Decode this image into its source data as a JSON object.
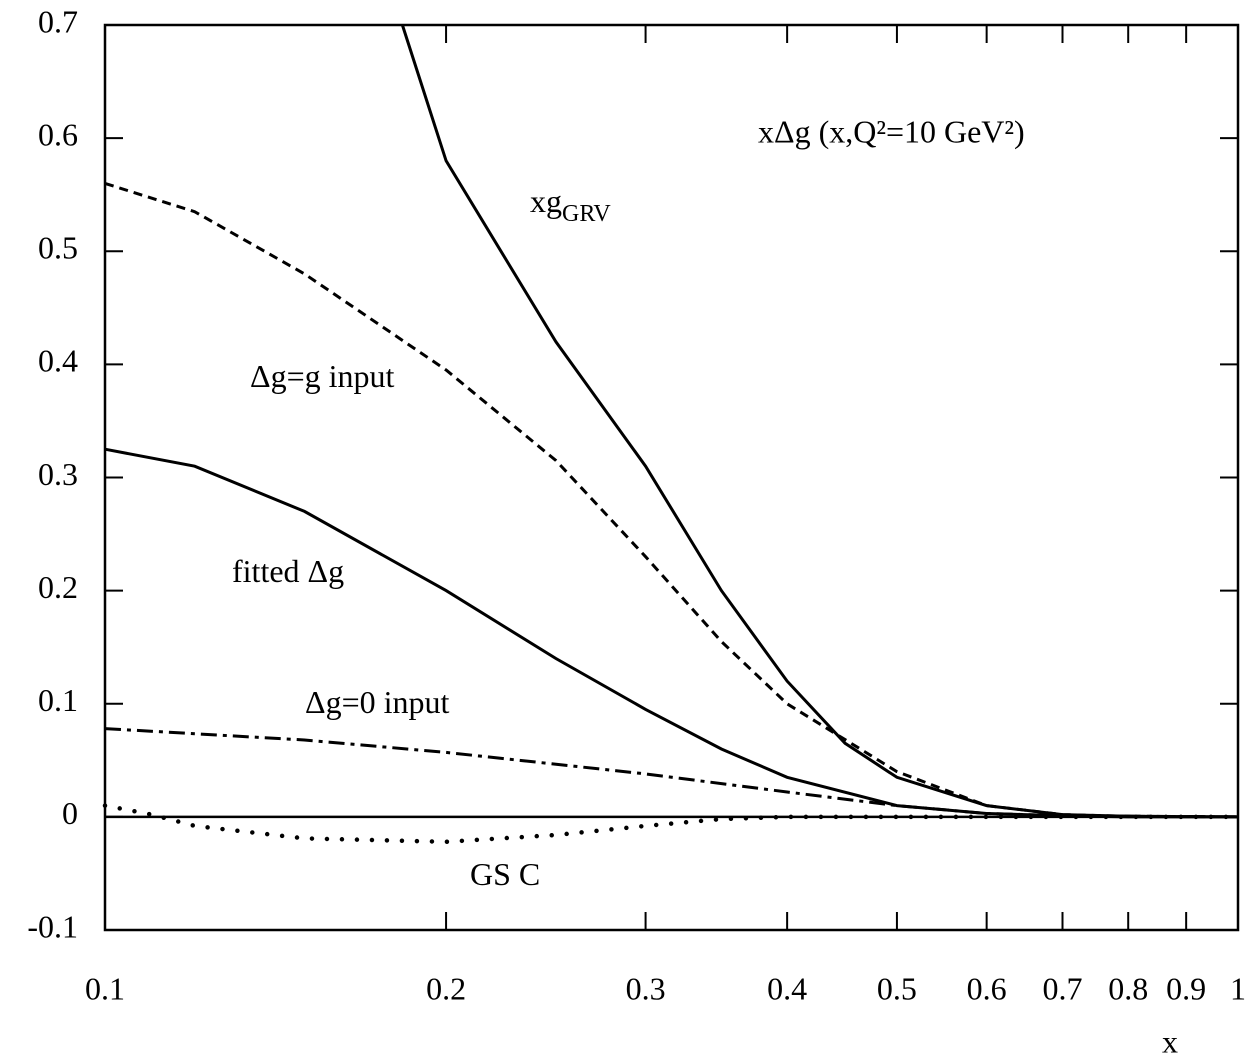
{
  "chart_data": {
    "type": "line",
    "title": "xΔg (x,Q²=10 GeV²)",
    "x_label": "x",
    "log_x": true,
    "xlim": [
      0.1,
      1
    ],
    "ylim": [
      -0.1,
      0.7
    ],
    "xticks": [
      0.1,
      0.2,
      0.3,
      0.4,
      0.5,
      0.6,
      0.7,
      0.8,
      0.9,
      1
    ],
    "yticks": [
      -0.1,
      0,
      0.1,
      0.2,
      0.3,
      0.4,
      0.5,
      0.6,
      0.7
    ],
    "series": [
      {
        "name": "xg",
        "name_subscript": "GRV",
        "color": "#000000",
        "style": "solid",
        "x": [
          0.183,
          0.2,
          0.25,
          0.3,
          0.35,
          0.4,
          0.45,
          0.5,
          0.6,
          0.7,
          0.8,
          1
        ],
        "values": [
          0.7,
          0.58,
          0.42,
          0.31,
          0.2,
          0.12,
          0.065,
          0.035,
          0.01,
          0.002,
          0.0005,
          0
        ]
      },
      {
        "name": "Δg=g input",
        "color": "#000000",
        "style": "dashed",
        "x": [
          0.1,
          0.12,
          0.15,
          0.2,
          0.25,
          0.3,
          0.35,
          0.4,
          0.5,
          0.6,
          0.7,
          0.8,
          1
        ],
        "values": [
          0.56,
          0.535,
          0.48,
          0.395,
          0.315,
          0.23,
          0.155,
          0.1,
          0.04,
          0.01,
          0.002,
          0.0005,
          0
        ]
      },
      {
        "name": "fitted Δg",
        "color": "#000000",
        "style": "solid",
        "x": [
          0.1,
          0.12,
          0.15,
          0.2,
          0.25,
          0.3,
          0.35,
          0.4,
          0.5,
          0.6,
          0.7,
          0.8,
          1
        ],
        "values": [
          0.325,
          0.31,
          0.27,
          0.2,
          0.14,
          0.095,
          0.06,
          0.035,
          0.01,
          0.003,
          0.001,
          0,
          0
        ]
      },
      {
        "name": "Δg=0 input",
        "color": "#000000",
        "style": "dashdot",
        "x": [
          0.1,
          0.15,
          0.2,
          0.3,
          0.4,
          0.5,
          0.6,
          0.7,
          1
        ],
        "values": [
          0.078,
          0.068,
          0.057,
          0.038,
          0.022,
          0.01,
          0.003,
          0.001,
          0
        ]
      },
      {
        "name": "GS C",
        "color": "#000000",
        "style": "dotted",
        "x": [
          0.1,
          0.11,
          0.12,
          0.15,
          0.2,
          0.25,
          0.3,
          0.35,
          0.4,
          0.5,
          1
        ],
        "values": [
          0.01,
          0.002,
          -0.008,
          -0.019,
          -0.022,
          -0.016,
          -0.008,
          -0.002,
          0,
          0,
          0
        ]
      }
    ]
  }
}
